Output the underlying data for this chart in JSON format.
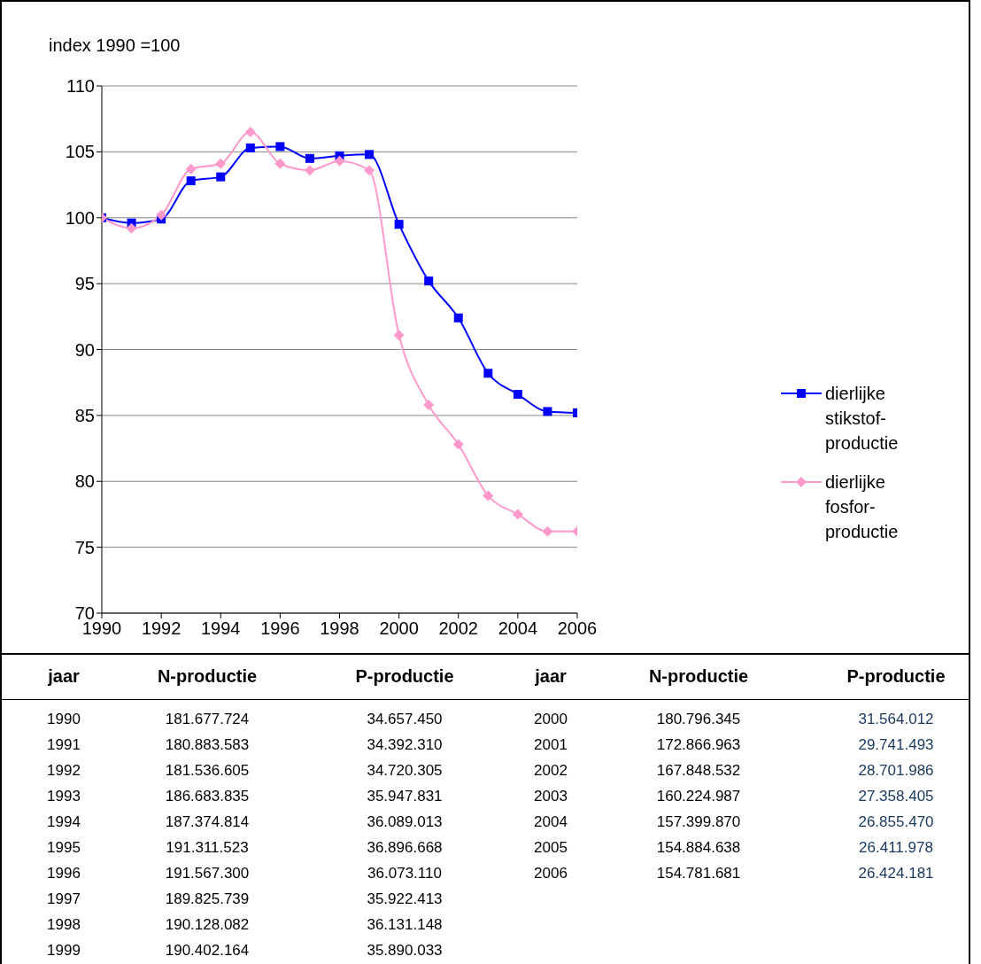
{
  "chart_data": {
    "type": "line",
    "ylabel": "index 1990 =100",
    "x": [
      1990,
      1991,
      1992,
      1993,
      1994,
      1995,
      1996,
      1997,
      1998,
      1999,
      2000,
      2001,
      2002,
      2003,
      2004,
      2005,
      2006
    ],
    "xlim": [
      1990,
      2006
    ],
    "xticks": [
      1990,
      1992,
      1994,
      1996,
      1998,
      2000,
      2002,
      2004,
      2006
    ],
    "ylim": [
      70,
      110
    ],
    "yticks": [
      70,
      75,
      80,
      85,
      90,
      95,
      100,
      105,
      110
    ],
    "grid": "y",
    "legend": "right",
    "series": [
      {
        "name": "dierlijke stikstof-productie",
        "color": "#0000ff",
        "marker": "square",
        "values": [
          100,
          99.6,
          99.9,
          102.8,
          103.1,
          105.3,
          105.4,
          104.5,
          104.7,
          104.8,
          99.5,
          95.2,
          92.4,
          88.2,
          86.6,
          85.3,
          85.2
        ]
      },
      {
        "name": "dierlijke fosfor-productie",
        "color": "#ff99cc",
        "marker": "diamond",
        "values": [
          100,
          99.2,
          100.2,
          103.7,
          104.1,
          106.5,
          104.1,
          103.6,
          104.3,
          103.6,
          91.1,
          85.8,
          82.8,
          78.9,
          77.5,
          76.2,
          76.2
        ]
      }
    ],
    "annotations": [
      "jaar",
      "N-productie",
      "P-productie",
      "jaar",
      "N-productie",
      "P-productie",
      "1990",
      "181.677.724",
      "34.657.450",
      "1991",
      "180.883.583",
      "34.392.310",
      "1992",
      "181.536.605",
      "34.720.305",
      "1993",
      "186.683.835",
      "35.947.831",
      "1994",
      "187.374.814",
      "36.089.013",
      "1995",
      "191.311.523",
      "36.896.668",
      "1996",
      "191.567.300",
      "36.073.110",
      "1997",
      "189.825.739",
      "35.922.413",
      "1998",
      "190.128.082",
      "36.131.148",
      "1999",
      "190.402.164",
      "35.890.033",
      "2000",
      "180.796.345",
      "31.564.012",
      "2001",
      "172.866.963",
      "29.741.493",
      "2002",
      "167.848.532",
      "28.701.986",
      "2003",
      "160.224.987",
      "27.358.405",
      "2004",
      "157.399.870",
      "26.855.470",
      "2005",
      "154.884.638",
      "26.411.978",
      "2006",
      "154.781.681",
      "26.424.181"
    ]
  }
}
